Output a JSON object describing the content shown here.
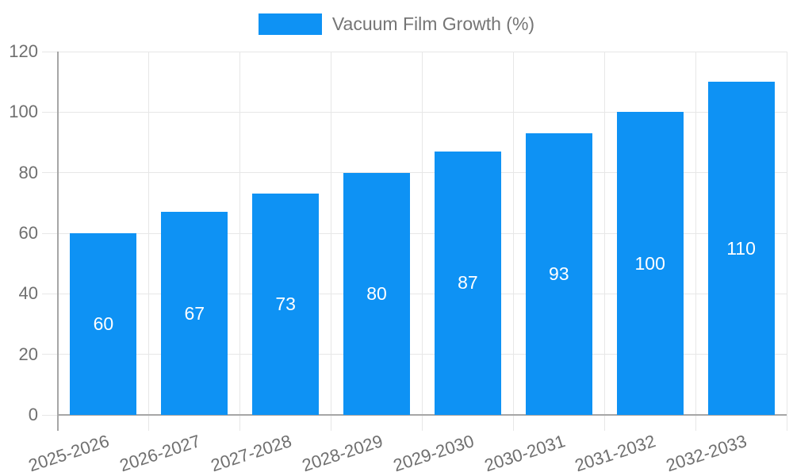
{
  "chart_data": {
    "type": "bar",
    "title": "",
    "xlabel": "",
    "ylabel": "",
    "categories": [
      "2025-2026",
      "2026-2027",
      "2027-2028",
      "2028-2029",
      "2029-2030",
      "2030-2031",
      "2031-2032",
      "2032-2033"
    ],
    "series": [
      {
        "name": "Vacuum Film Growth (%)",
        "values": [
          60,
          67,
          73,
          80,
          87,
          93,
          100,
          110
        ]
      }
    ],
    "ylim": [
      0,
      120
    ],
    "yticks": [
      0,
      20,
      40,
      60,
      80,
      100,
      120
    ],
    "grid": true,
    "legend_position": "top",
    "value_labels_shown": true
  },
  "colors": {
    "bar": "#0E92F4",
    "grid": "#E7E7E7",
    "axis": "#A6A6A6",
    "tick_text": "#6F6F6F",
    "legend_text": "#757575",
    "value_text": "#FFFFFF"
  }
}
